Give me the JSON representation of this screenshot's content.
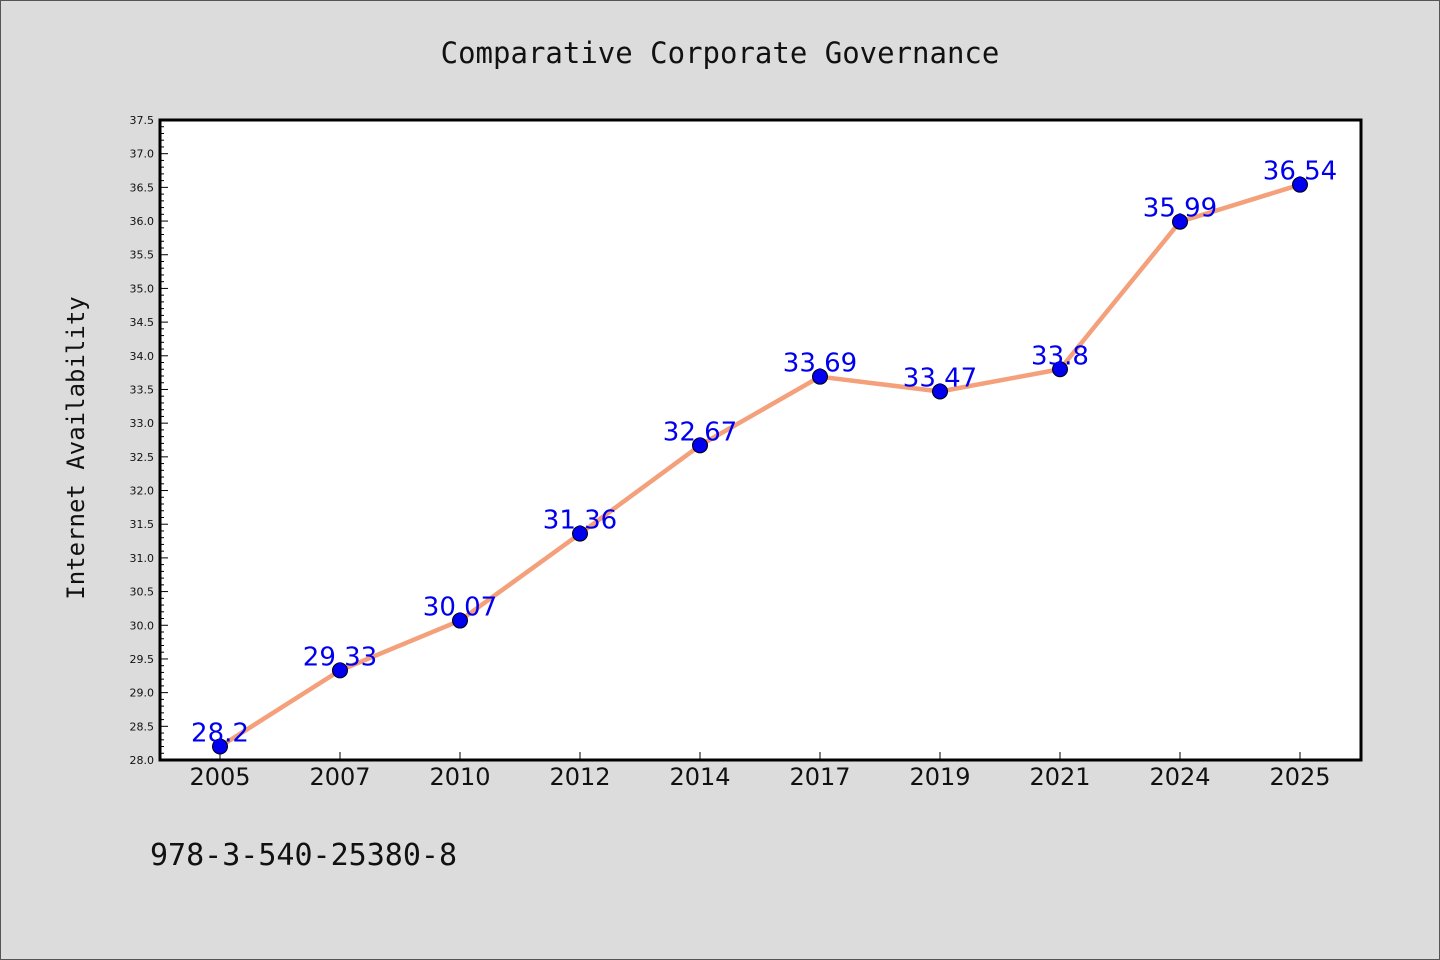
{
  "chart_data": {
    "type": "line",
    "title": "Comparative Corporate Governance",
    "xlabel": "",
    "ylabel": "Internet Availability",
    "categories": [
      "2005",
      "2007",
      "2010",
      "2012",
      "2014",
      "2017",
      "2019",
      "2021",
      "2024",
      "2025"
    ],
    "series": [
      {
        "values": [
          28.2,
          29.33,
          30.07,
          31.36,
          32.67,
          33.69,
          33.47,
          33.8,
          35.99,
          36.54
        ],
        "data_labels": [
          "28.2",
          "29.33",
          "30.07",
          "31.36",
          "32.67",
          "33.69",
          "33.47",
          "33.8",
          "35.99",
          "36.54"
        ]
      }
    ],
    "ylim": [
      28.0,
      37.5
    ],
    "yticks": [
      "28.0",
      "28.5",
      "29.0",
      "29.5",
      "30.0",
      "30.5",
      "31.0",
      "31.5",
      "32.0",
      "32.5",
      "33.0",
      "33.5",
      "34.0",
      "34.5",
      "35.0",
      "35.5",
      "36.0",
      "36.5",
      "37.0",
      "37.5"
    ],
    "grid": false,
    "colors": {
      "line": "#f4a07a",
      "marker": "#0000ee",
      "data_label": "#0000ee",
      "background": "#dcdcdc",
      "plot_background": "#ffffff"
    }
  },
  "footer": {
    "isbn": "978-3-540-25380-8"
  }
}
